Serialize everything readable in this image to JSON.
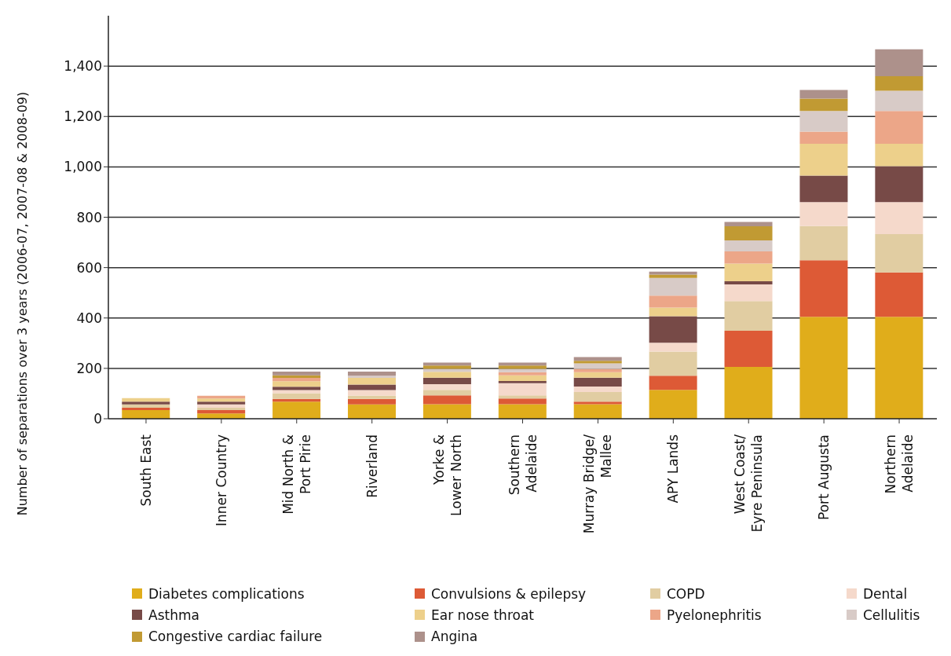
{
  "chart_data": {
    "type": "bar",
    "stacked": true,
    "ylabel": "Number of separations over 3 years (2006-07, 2007-08 & 2008-09)",
    "categories": [
      "South East",
      "Inner Country",
      "Mid North &\nPort Pirie",
      "Riverland",
      "Yorke &\nLower North",
      "Southern\nAdelaide",
      "Murray Bridge/\nMallee",
      "APY Lands",
      "West Coast/\nEyre Peninsula",
      "Port Augusta",
      "Northern\nAdelaide"
    ],
    "series": [
      {
        "name": "Diabetes complications",
        "color": "#e0ad1b",
        "values": [
          34,
          21,
          68,
          57,
          58,
          58,
          58,
          115,
          206,
          405,
          405
        ]
      },
      {
        "name": "Convulsions & epilepsy",
        "color": "#dd5a36",
        "values": [
          10,
          13,
          11,
          22,
          35,
          22,
          10,
          56,
          143,
          224,
          176
        ]
      },
      {
        "name": "COPD",
        "color": "#e1cda2",
        "values": [
          13,
          10,
          22,
          13,
          22,
          13,
          38,
          96,
          118,
          136,
          152
        ]
      },
      {
        "name": "Dental",
        "color": "#f5d9cb",
        "values": [
          0,
          13,
          13,
          22,
          22,
          48,
          22,
          35,
          66,
          95,
          127
        ]
      },
      {
        "name": "Asthma",
        "color": "#774a47",
        "values": [
          11,
          11,
          13,
          22,
          26,
          9,
          35,
          105,
          13,
          105,
          143
        ]
      },
      {
        "name": "Ear nose throat",
        "color": "#edd08b",
        "values": [
          14,
          12,
          22,
          26,
          23,
          22,
          22,
          34,
          70,
          127,
          89
        ]
      },
      {
        "name": "Pyelonephritis",
        "color": "#eca688",
        "values": [
          0,
          11,
          13,
          0,
          0,
          13,
          13,
          48,
          48,
          48,
          130
        ]
      },
      {
        "name": "Cellulitis",
        "color": "#d8cbc7",
        "values": [
          0,
          0,
          0,
          9,
          12,
          13,
          22,
          70,
          44,
          82,
          80
        ]
      },
      {
        "name": "Congestive cardiac failure",
        "color": "#c19a33",
        "values": [
          0,
          0,
          10,
          0,
          13,
          13,
          10,
          13,
          56,
          49,
          58
        ]
      },
      {
        "name": "Angina",
        "color": "#ad918b",
        "values": [
          0,
          0,
          15,
          16,
          12,
          12,
          15,
          12,
          17,
          34,
          107
        ]
      }
    ],
    "ylim": [
      0,
      1600
    ],
    "yticks": [
      0,
      200,
      400,
      600,
      800,
      {
        "value": 1000,
        "label": "1,000"
      },
      {
        "value": 1200,
        "label": "1,200"
      },
      {
        "value": 1400,
        "label": "1,400"
      }
    ],
    "grid": "y",
    "legend": "bottom"
  }
}
